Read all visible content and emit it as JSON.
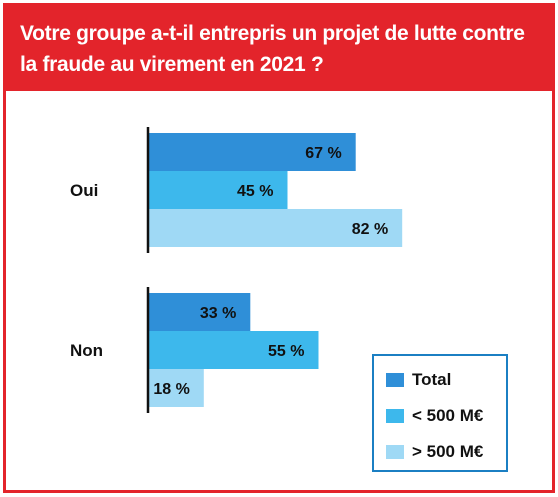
{
  "title": "Votre groupe a-t-il entrepris un projet de lutte contre la fraude au virement en 2021 ?",
  "chart_data": {
    "type": "bar",
    "orientation": "horizontal",
    "categories": [
      "Oui",
      "Non"
    ],
    "series": [
      {
        "name": "Total",
        "values": [
          67,
          33
        ],
        "color": "#2f8fd8"
      },
      {
        "name": "< 500 M€",
        "values": [
          45,
          55
        ],
        "color": "#3db8ec"
      },
      {
        "name": "> 500 M€",
        "values": [
          82,
          18
        ],
        "color": "#9fd9f5"
      }
    ],
    "value_suffix": " %",
    "xlim": [
      0,
      100
    ],
    "grid": false,
    "legend_position": "bottom-right"
  }
}
